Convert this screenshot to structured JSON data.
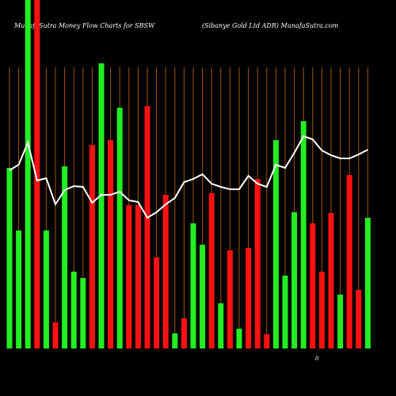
{
  "chart_data": {
    "type": "bar",
    "title": "MunafaSutra  Money Flow  Charts for SBSW",
    "subtitle": "(Sibanye   Gold Ltd ADR) MunafaSutra.com",
    "annotation": "0",
    "categories": [
      null,
      null,
      null,
      null,
      null,
      null,
      null,
      null,
      null,
      null,
      null,
      null,
      null,
      null,
      null,
      null,
      null,
      null,
      null,
      null,
      null,
      null,
      null,
      null,
      null,
      null,
      null,
      null,
      null,
      null,
      null,
      null,
      null,
      null,
      null,
      null,
      null,
      null,
      null,
      null
    ],
    "values": [
      228,
      149,
      440,
      440,
      149,
      33,
      230,
      97,
      89,
      257,
      360,
      263,
      304,
      181,
      181,
      306,
      115,
      194,
      19,
      38,
      158,
      131,
      196,
      57,
      124,
      25,
      127,
      214,
      18,
      263,
      92,
      172,
      287,
      158,
      97,
      171,
      68,
      219,
      74,
      165
    ],
    "colors": [
      "#22ee22",
      "#22ee22",
      "#22ee22",
      "#ff1111",
      "#22ee22",
      "#ff1111",
      "#22ee22",
      "#22ee22",
      "#22ee22",
      "#ff1111",
      "#22ee22",
      "#ff1111",
      "#22ee22",
      "#ff1111",
      "#ff1111",
      "#ff1111",
      "#ff1111",
      "#ff1111",
      "#22ee22",
      "#ff1111",
      "#22ee22",
      "#22ee22",
      "#ff1111",
      "#22ee22",
      "#ff1111",
      "#22ee22",
      "#ff1111",
      "#ff1111",
      "#ff1111",
      "#22ee22",
      "#22ee22",
      "#22ee22",
      "#22ee22",
      "#ff1111",
      "#ff1111",
      "#ff1111",
      "#22ee22",
      "#ff1111",
      "#ff1111",
      "#22ee22"
    ],
    "line_values": [
      225,
      232,
      260,
      212,
      215,
      182,
      200,
      205,
      204,
      184,
      194,
      194,
      198,
      187,
      185,
      165,
      172,
      182,
      190,
      210,
      214,
      220,
      208,
      204,
      201,
      201,
      218,
      208,
      204,
      232,
      228,
      247,
      268,
      264,
      250,
      244,
      240,
      240,
      245,
      251
    ],
    "line_color": "#ffffff",
    "grid_color": "#a0560e",
    "ylim": [
      0,
      440
    ]
  }
}
